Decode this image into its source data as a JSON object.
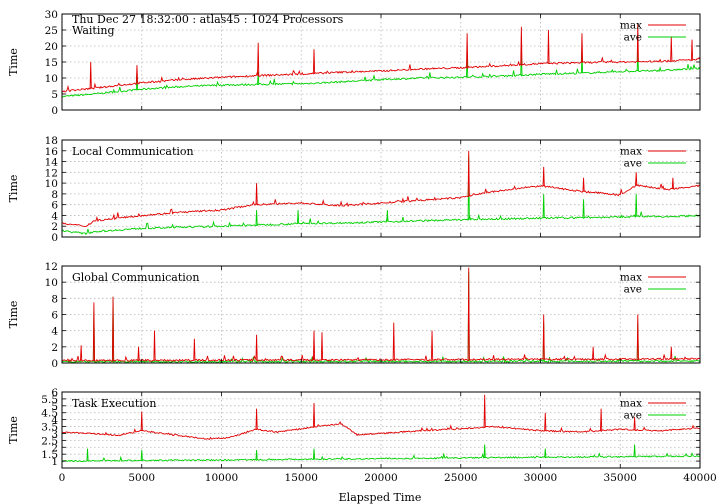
{
  "figure": {
    "header": "Thu Dec 27 18:32:00 : atlas45 : 1024 Processors",
    "xlabel": "Elapsped Time"
  },
  "chart_data": [
    {
      "type": "line",
      "title": "Waiting",
      "ylabel": "Time",
      "xlim": [
        0,
        40000
      ],
      "ylim": [
        0,
        30
      ],
      "xticks": [
        0,
        5000,
        10000,
        15000,
        20000,
        25000,
        30000,
        35000,
        40000
      ],
      "xtick_labels": [],
      "yticks": [
        0,
        5,
        10,
        15,
        20,
        25,
        30
      ],
      "ytick_labels": [
        "0",
        "5",
        "10",
        "15",
        "20",
        "25",
        "30"
      ],
      "grid": true,
      "legend": "top-right",
      "colors": {
        "max": "#e00000",
        "ave": "#00d000"
      },
      "x": [
        0,
        2000,
        5000,
        7500,
        10000,
        12500,
        15000,
        17500,
        20000,
        22500,
        25000,
        27500,
        30000,
        32500,
        35000,
        37500,
        40000
      ],
      "series": [
        {
          "name": "max",
          "values": [
            5.8,
            6.8,
            8.5,
            9.5,
            10.2,
            10.8,
            11.2,
            11.8,
            12.2,
            12.8,
            13.2,
            13.8,
            14.5,
            14.8,
            15.0,
            15.2,
            15.8
          ],
          "spikes": [
            [
              1800,
              15
            ],
            [
              4700,
              14
            ],
            [
              12300,
              21
            ],
            [
              15800,
              19
            ],
            [
              25400,
              24
            ],
            [
              28800,
              26
            ],
            [
              30500,
              25
            ],
            [
              32600,
              24
            ],
            [
              36100,
              27
            ],
            [
              38200,
              23
            ],
            [
              39500,
              22
            ]
          ]
        },
        {
          "name": "ave",
          "values": [
            4.2,
            5.0,
            6.5,
            7.3,
            7.8,
            8.0,
            8.2,
            8.8,
            9.5,
            10.0,
            10.2,
            10.6,
            11.2,
            11.5,
            12.0,
            12.3,
            13.0
          ],
          "spikes": [
            [
              4700,
              12
            ],
            [
              12300,
              12
            ],
            [
              25400,
              18
            ],
            [
              28800,
              19
            ],
            [
              32600,
              18
            ],
            [
              36100,
              19
            ]
          ]
        }
      ]
    },
    {
      "type": "line",
      "title": "Local Communication",
      "ylabel": "Time",
      "xlim": [
        0,
        40000
      ],
      "ylim": [
        0,
        18
      ],
      "xticks": [
        0,
        5000,
        10000,
        15000,
        20000,
        25000,
        30000,
        35000,
        40000
      ],
      "xtick_labels": [],
      "yticks": [
        0,
        2,
        4,
        6,
        8,
        10,
        12,
        14,
        16,
        18
      ],
      "ytick_labels": [
        "0",
        "2",
        "4",
        "6",
        "8",
        "10",
        "12",
        "14",
        "16",
        "18"
      ],
      "grid": true,
      "legend": "top-right",
      "colors": {
        "max": "#e00000",
        "ave": "#00d000"
      },
      "x": [
        0,
        1500,
        2000,
        5000,
        7500,
        10000,
        12000,
        15000,
        17500,
        20000,
        22500,
        25000,
        26500,
        30000,
        32500,
        35000,
        36000,
        38000,
        40000
      ],
      "series": [
        {
          "name": "max",
          "values": [
            2.5,
            2.0,
            3.0,
            4.0,
            4.6,
            5.0,
            6.0,
            6.3,
            5.8,
            6.3,
            6.8,
            7.3,
            8.2,
            9.5,
            8.5,
            7.8,
            9.6,
            8.8,
            9.5
          ],
          "spikes": [
            [
              12200,
              10
            ],
            [
              25500,
              16
            ],
            [
              30200,
              13
            ],
            [
              32700,
              11
            ],
            [
              36000,
              12
            ],
            [
              38300,
              11
            ]
          ]
        },
        {
          "name": "ave",
          "values": [
            1.2,
            0.6,
            1.0,
            1.6,
            1.8,
            2.0,
            2.2,
            2.5,
            2.6,
            2.8,
            3.0,
            3.2,
            3.3,
            3.5,
            3.6,
            3.7,
            3.8,
            3.8,
            4.0
          ],
          "spikes": [
            [
              12200,
              5
            ],
            [
              14800,
              5
            ],
            [
              20400,
              5
            ],
            [
              25500,
              15
            ],
            [
              30200,
              8
            ],
            [
              32700,
              7
            ],
            [
              36000,
              8
            ]
          ]
        }
      ]
    },
    {
      "type": "line",
      "title": "Global Communication",
      "ylabel": "Time",
      "xlim": [
        0,
        40000
      ],
      "ylim": [
        0,
        12
      ],
      "xticks": [
        0,
        5000,
        10000,
        15000,
        20000,
        25000,
        30000,
        35000,
        40000
      ],
      "xtick_labels": [],
      "yticks": [
        0,
        2,
        4,
        6,
        8,
        10,
        12
      ],
      "ytick_labels": [
        "0",
        "2",
        "4",
        "6",
        "8",
        "10",
        "12"
      ],
      "grid": true,
      "legend": "top-right",
      "colors": {
        "max": "#e00000",
        "ave": "#00d000"
      },
      "x": [
        0,
        10000,
        20000,
        30000,
        40000
      ],
      "series": [
        {
          "name": "max",
          "values": [
            0.3,
            0.35,
            0.4,
            0.45,
            0.5
          ],
          "spikes": [
            [
              1200,
              2.2
            ],
            [
              2000,
              7.5
            ],
            [
              3200,
              8.2
            ],
            [
              4800,
              2
            ],
            [
              5800,
              4
            ],
            [
              8300,
              3
            ],
            [
              12200,
              3.5
            ],
            [
              15800,
              4
            ],
            [
              16300,
              3.8
            ],
            [
              20800,
              5
            ],
            [
              23200,
              4
            ],
            [
              25500,
              11.8
            ],
            [
              30200,
              6
            ],
            [
              33300,
              2
            ],
            [
              36100,
              6
            ],
            [
              38200,
              2
            ]
          ]
        },
        {
          "name": "ave",
          "values": [
            0.15,
            0.18,
            0.2,
            0.22,
            0.25
          ],
          "spikes": [
            [
              2000,
              6.5
            ],
            [
              3200,
              8.2
            ],
            [
              25500,
              11.3
            ],
            [
              30200,
              5
            ],
            [
              36100,
              5
            ]
          ]
        }
      ]
    },
    {
      "type": "line",
      "title": "Task Execution",
      "ylabel": "Time",
      "xlim": [
        0,
        40000
      ],
      "ylim": [
        0.5,
        6
      ],
      "xticks": [
        0,
        5000,
        10000,
        15000,
        20000,
        25000,
        30000,
        35000,
        40000
      ],
      "xtick_labels": [
        "0",
        "5000",
        "10000",
        "15000",
        "20000",
        "25000",
        "30000",
        "35000",
        "40000"
      ],
      "yticks": [
        1,
        1.5,
        2,
        2.5,
        3,
        3.5,
        4,
        4.5,
        5,
        5.5,
        6
      ],
      "ytick_labels": [
        "1",
        "1.5",
        "2",
        "2.5",
        "3",
        "3.5",
        "4",
        "4.5",
        "5",
        "5.5",
        "6"
      ],
      "grid": true,
      "legend": "top-right",
      "colors": {
        "max": "#e00000",
        "ave": "#00d000"
      },
      "x": [
        0,
        2500,
        3500,
        5000,
        7000,
        9000,
        10500,
        12200,
        13500,
        16000,
        17500,
        18500,
        20000,
        22500,
        24500,
        27000,
        30000,
        32500,
        35000,
        37500,
        40000
      ],
      "series": [
        {
          "name": "max",
          "values": [
            3.1,
            2.95,
            2.85,
            3.2,
            2.9,
            2.6,
            2.7,
            3.3,
            3.1,
            3.5,
            3.7,
            2.9,
            3.0,
            3.2,
            3.3,
            3.5,
            3.2,
            3.1,
            3.3,
            3.2,
            3.4
          ],
          "spikes": [
            [
              5000,
              4.6
            ],
            [
              12200,
              4.8
            ],
            [
              15800,
              5.2
            ],
            [
              26500,
              5.8
            ],
            [
              30300,
              4.5
            ],
            [
              33800,
              4.8
            ],
            [
              35900,
              4.2
            ]
          ]
        },
        {
          "name": "ave",
          "values": [
            1.0,
            1.02,
            1.04,
            1.05,
            1.06,
            1.07,
            1.08,
            1.1,
            1.12,
            1.15,
            1.15,
            1.16,
            1.18,
            1.2,
            1.22,
            1.25,
            1.28,
            1.3,
            1.32,
            1.34,
            1.36
          ],
          "spikes": [
            [
              1600,
              1.9
            ],
            [
              5000,
              1.8
            ],
            [
              12200,
              1.8
            ],
            [
              15800,
              1.9
            ],
            [
              26500,
              2.2
            ],
            [
              30300,
              1.9
            ],
            [
              35900,
              2.2
            ]
          ]
        }
      ]
    }
  ]
}
